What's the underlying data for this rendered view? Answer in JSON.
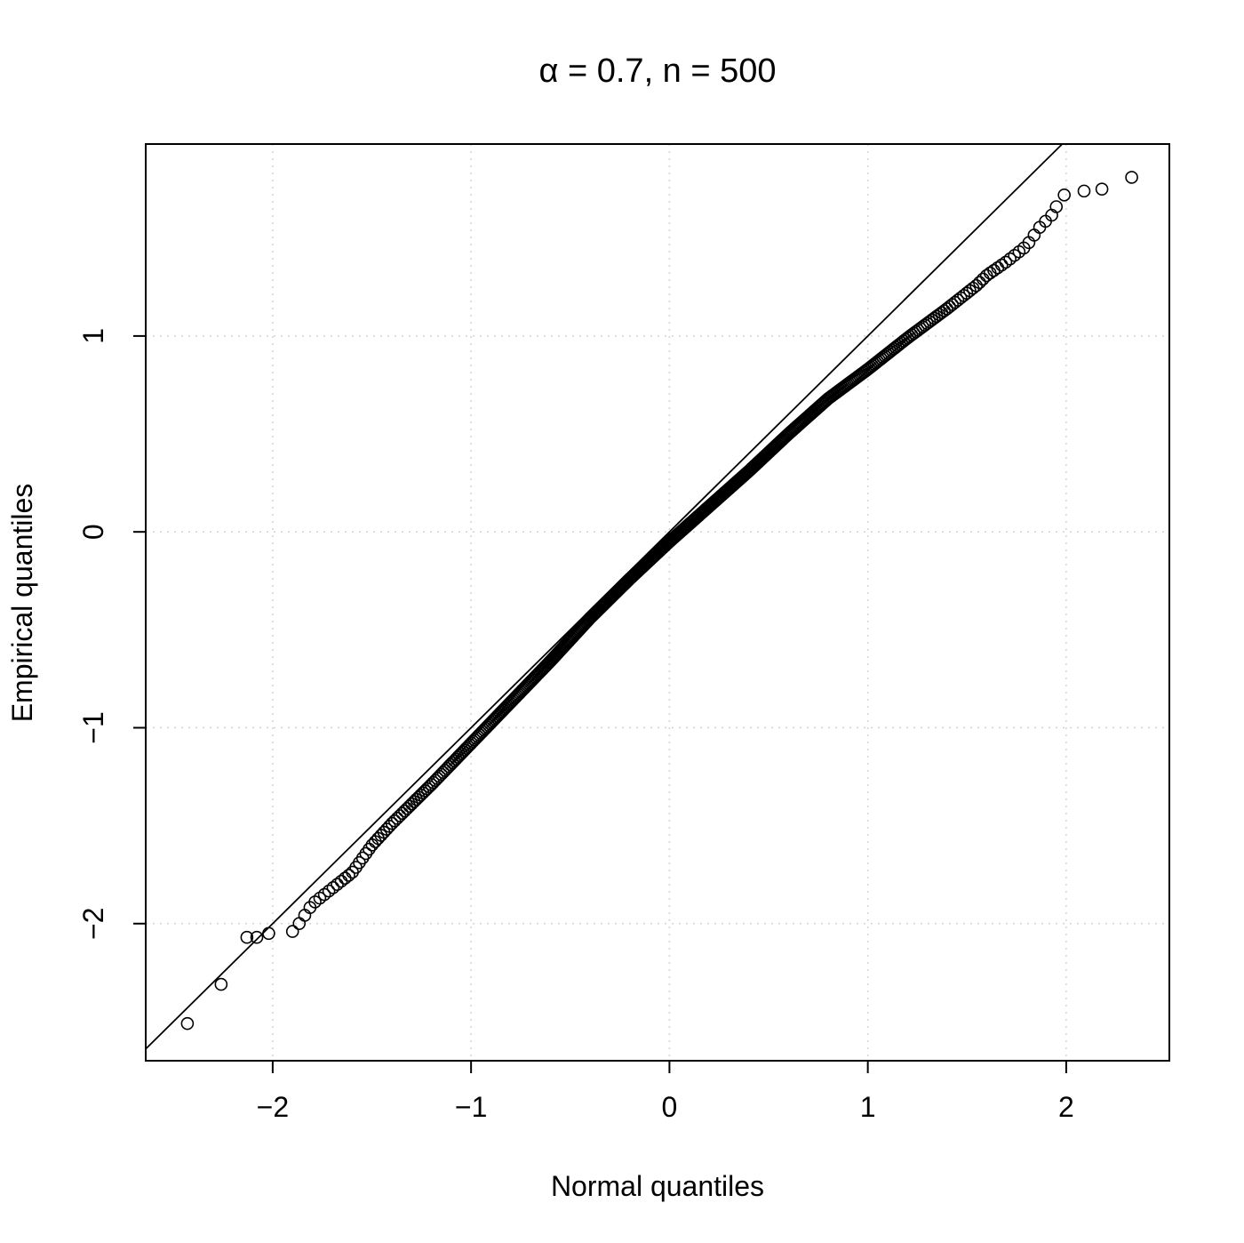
{
  "chart_data": {
    "type": "scatter",
    "title": "α = 0.7, n = 500",
    "xlabel": "Normal quantiles",
    "ylabel": "Empirical quantiles",
    "xlim": [
      -2.64,
      2.52
    ],
    "ylim": [
      -2.7,
      1.98
    ],
    "x_ticks": [
      -2,
      -1,
      0,
      1,
      2
    ],
    "y_ticks": [
      -2,
      -1,
      0,
      1
    ],
    "x_tick_labels": [
      "−2",
      "−1",
      "0",
      "1",
      "2"
    ],
    "y_tick_labels": [
      "−2",
      "−1",
      "0",
      "1"
    ],
    "grid": true,
    "reference_line": {
      "intercept": 0,
      "slope": 1
    },
    "n": 500,
    "outlier_points": [
      {
        "x": -2.43,
        "y": -2.51
      },
      {
        "x": -2.26,
        "y": -2.31
      },
      {
        "x": -2.13,
        "y": -2.07
      },
      {
        "x": -2.08,
        "y": -2.07
      },
      {
        "x": -2.02,
        "y": -2.05
      },
      {
        "x": -1.9,
        "y": -2.04
      },
      {
        "x": 1.95,
        "y": 1.66
      },
      {
        "x": 1.99,
        "y": 1.72
      },
      {
        "x": 2.09,
        "y": 1.74
      },
      {
        "x": 2.18,
        "y": 1.75
      },
      {
        "x": 2.33,
        "y": 1.81
      }
    ],
    "body_curve": [
      {
        "x": -1.88,
        "y": -2.02
      },
      {
        "x": -1.8,
        "y": -1.9
      },
      {
        "x": -1.7,
        "y": -1.82
      },
      {
        "x": -1.6,
        "y": -1.74
      },
      {
        "x": -1.5,
        "y": -1.6
      },
      {
        "x": -1.4,
        "y": -1.49
      },
      {
        "x": -1.2,
        "y": -1.29
      },
      {
        "x": -1.0,
        "y": -1.08
      },
      {
        "x": -0.8,
        "y": -0.87
      },
      {
        "x": -0.6,
        "y": -0.66
      },
      {
        "x": -0.4,
        "y": -0.44
      },
      {
        "x": -0.2,
        "y": -0.24
      },
      {
        "x": 0.0,
        "y": -0.05
      },
      {
        "x": 0.2,
        "y": 0.13
      },
      {
        "x": 0.4,
        "y": 0.31
      },
      {
        "x": 0.6,
        "y": 0.5
      },
      {
        "x": 0.8,
        "y": 0.68
      },
      {
        "x": 1.0,
        "y": 0.83
      },
      {
        "x": 1.2,
        "y": 0.99
      },
      {
        "x": 1.4,
        "y": 1.14
      },
      {
        "x": 1.55,
        "y": 1.26
      },
      {
        "x": 1.6,
        "y": 1.31
      },
      {
        "x": 1.7,
        "y": 1.38
      },
      {
        "x": 1.8,
        "y": 1.46
      },
      {
        "x": 1.87,
        "y": 1.56
      },
      {
        "x": 1.93,
        "y": 1.62
      }
    ]
  }
}
